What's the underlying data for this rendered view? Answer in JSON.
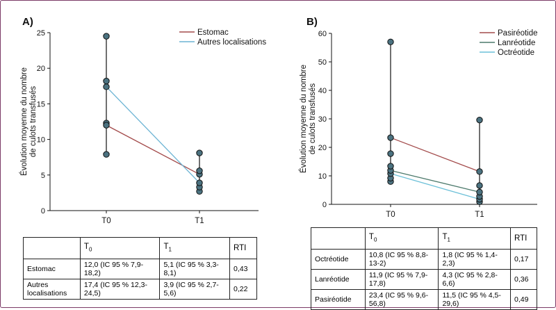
{
  "colors": {
    "estomac": "#a34b4b",
    "autres": "#6cb4d4",
    "pasireotide": "#a34b4b",
    "lanreotide": "#4d7a6c",
    "octreotide": "#6cc0d8",
    "point_fill": "#4b7280",
    "whisker": "#222222"
  },
  "chart_data": [
    {
      "type": "line",
      "panel_label": "A)",
      "ylabel": "Évolution moyenne du nombre de culots transfusés",
      "ylabel_lines": [
        "Évolution moyenne du nombre",
        "de culots transfusés"
      ],
      "categories": [
        "T0",
        "T1"
      ],
      "ylim": [
        0,
        25
      ],
      "yticks": [
        0,
        5,
        10,
        15,
        20,
        25
      ],
      "legend_position": "top-right",
      "series": [
        {
          "name": "Estomac",
          "color_key": "estomac",
          "values": [
            12.0,
            5.1
          ]
        },
        {
          "name": "Autres localisations",
          "color_key": "autres",
          "values": [
            17.4,
            3.9
          ]
        }
      ],
      "points": [
        [
          7.9,
          12.3,
          12.0,
          17.4,
          18.2,
          24.5
        ],
        [
          2.7,
          3.3,
          3.9,
          5.1,
          5.6,
          8.1
        ]
      ]
    },
    {
      "type": "line",
      "panel_label": "B)",
      "ylabel": "Évolution moyenne du nombre de culots transfusés",
      "ylabel_lines": [
        "Évolution moyenne du nombre",
        "de culots transfusés"
      ],
      "categories": [
        "T0",
        "T1"
      ],
      "ylim": [
        0,
        60
      ],
      "yticks": [
        0,
        10,
        20,
        30,
        40,
        50,
        60
      ],
      "legend_position": "top-right",
      "series": [
        {
          "name": "Pasiréotide",
          "color_key": "pasireotide",
          "values": [
            23.4,
            11.5
          ]
        },
        {
          "name": "Lanréotide",
          "color_key": "lanreotide",
          "values": [
            11.9,
            4.3
          ]
        },
        {
          "name": "Octréotide",
          "color_key": "octreotide",
          "values": [
            10.8,
            1.8
          ]
        }
      ],
      "points": [
        [
          8.0,
          9.2,
          10.8,
          11.9,
          13.4,
          17.8,
          23.4,
          57.0
        ],
        [
          0.9,
          1.8,
          2.8,
          4.3,
          6.6,
          11.5,
          29.6
        ]
      ]
    }
  ],
  "table_a": {
    "headers": [
      "",
      "T",
      "T",
      "RTI"
    ],
    "header_subs": [
      "",
      "0",
      "1",
      ""
    ],
    "rows": [
      {
        "label": "Estomac",
        "t0": "12,0 (IC 95 % 7,9-18,2)",
        "t1": "5,1 (IC 95 % 3,3-8,1)",
        "rti": "0,43"
      },
      {
        "label": "Autres localisations",
        "t0": "17,4 (IC 95 % 12,3-24,5)",
        "t1": "3,9 (IC 95 % 2,7-5,6)",
        "rti": "0,22"
      }
    ]
  },
  "table_b": {
    "headers": [
      "",
      "T",
      "T",
      "RTI"
    ],
    "header_subs": [
      "",
      "0",
      "1",
      ""
    ],
    "rows": [
      {
        "label": "Octréotide",
        "t0": "10,8 (IC 95 % 8,8-13-2)",
        "t1": "1,8 (IC 95 % 1,4-2,3)",
        "rti": "0,17"
      },
      {
        "label": "Lanréotide",
        "t0": "11,9 (IC 95 % 7,9-17,8)",
        "t1": "4,3 (IC 95 % 2,8-6,6)",
        "rti": "0,36"
      },
      {
        "label": "Pasiréotide",
        "t0": "23,4 (IC 95 % 9,6-56,8)",
        "t1": "11,5 (IC 95 % 4,5-29,6)",
        "rti": "0,49"
      }
    ]
  }
}
